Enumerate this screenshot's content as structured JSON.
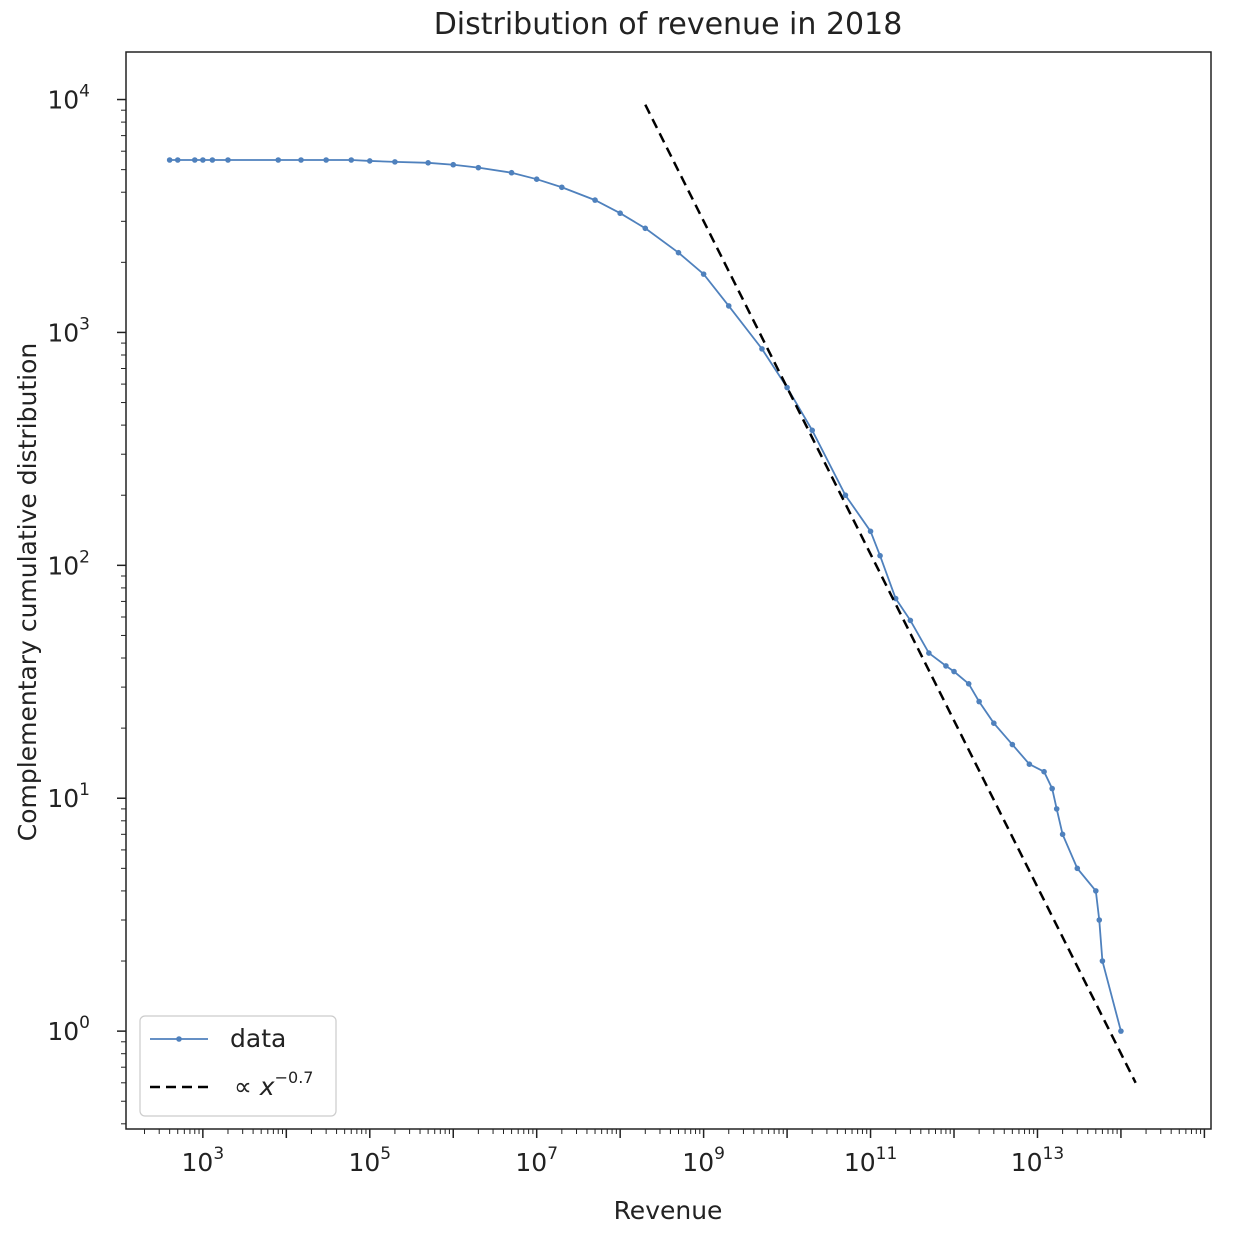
{
  "chart_data": {
    "type": "line",
    "title": "Distribution of revenue in 2018",
    "xlabel": "Revenue",
    "ylabel": "Complementary cumulative distribution",
    "xscale": "log",
    "yscale": "log",
    "xlim": [
      120.0,
      1200000000000000.0
    ],
    "ylim": [
      0.38,
      16000.0
    ],
    "x_ticks": [
      {
        "value": 1000.0,
        "base": "10",
        "exp": "3"
      },
      {
        "value": 100000.0,
        "base": "10",
        "exp": "5"
      },
      {
        "value": 10000000.0,
        "base": "10",
        "exp": "7"
      },
      {
        "value": 1000000000.0,
        "base": "10",
        "exp": "9"
      },
      {
        "value": 100000000000.0,
        "base": "10",
        "exp": "11"
      },
      {
        "value": 10000000000000.0,
        "base": "10",
        "exp": "13"
      }
    ],
    "y_ticks": [
      {
        "value": 1,
        "base": "10",
        "exp": "0"
      },
      {
        "value": 10,
        "base": "10",
        "exp": "1"
      },
      {
        "value": 100,
        "base": "10",
        "exp": "2"
      },
      {
        "value": 1000,
        "base": "10",
        "exp": "3"
      },
      {
        "value": 10000,
        "base": "10",
        "exp": "4"
      }
    ],
    "legend_position": "lower-left",
    "grid": false,
    "series": [
      {
        "name": "data",
        "style": "solid-line-with-dots",
        "color": "#4f81bd",
        "points": [
          [
            400,
            5500
          ],
          [
            500,
            5500
          ],
          [
            800,
            5500
          ],
          [
            1000,
            5500
          ],
          [
            1300,
            5500
          ],
          [
            2000,
            5500
          ],
          [
            8000,
            5500
          ],
          [
            15000,
            5500
          ],
          [
            30000,
            5500
          ],
          [
            60000,
            5500
          ],
          [
            100000,
            5450
          ],
          [
            200000,
            5400
          ],
          [
            500000,
            5350
          ],
          [
            1000000,
            5250
          ],
          [
            2000000,
            5100
          ],
          [
            5000000,
            4850
          ],
          [
            10000000,
            4550
          ],
          [
            20000000,
            4200
          ],
          [
            50000000,
            3700
          ],
          [
            100000000,
            3250
          ],
          [
            200000000,
            2800
          ],
          [
            500000000,
            2200
          ],
          [
            1000000000,
            1780
          ],
          [
            2000000000,
            1300
          ],
          [
            5000000000,
            850
          ],
          [
            10000000000,
            580
          ],
          [
            20000000000,
            380
          ],
          [
            50000000000,
            200
          ],
          [
            100000000000,
            140
          ],
          [
            130000000000,
            110
          ],
          [
            200000000000,
            72
          ],
          [
            300000000000,
            58
          ],
          [
            500000000000,
            42
          ],
          [
            800000000000,
            37
          ],
          [
            1000000000000,
            35
          ],
          [
            1500000000000,
            31
          ],
          [
            2000000000000,
            26
          ],
          [
            3000000000000,
            21
          ],
          [
            5000000000000,
            17
          ],
          [
            8000000000000,
            14
          ],
          [
            12000000000000,
            13
          ],
          [
            15000000000000,
            11
          ],
          [
            17000000000000,
            9
          ],
          [
            20000000000000,
            7
          ],
          [
            30000000000000,
            5
          ],
          [
            50000000000000,
            4
          ],
          [
            55000000000000,
            3
          ],
          [
            60000000000000,
            2
          ],
          [
            100000000000000,
            1
          ]
        ]
      },
      {
        "name": "∝ x",
        "name_exp": "−0.7",
        "style": "dashed",
        "color": "#000000",
        "points": [
          [
            200000000,
            9500
          ],
          [
            150000000000000,
            0.6
          ]
        ]
      }
    ]
  }
}
